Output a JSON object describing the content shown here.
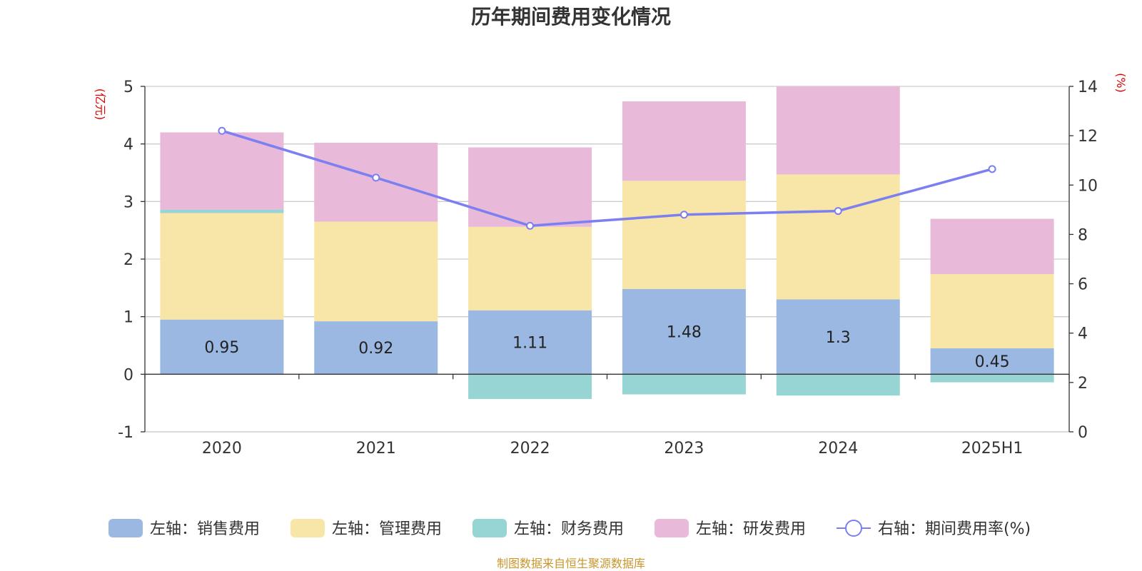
{
  "chart_data": {
    "type": "bar",
    "title": "历年期间费用变化情况",
    "categories": [
      "2020",
      "2021",
      "2022",
      "2023",
      "2024",
      "2025H1"
    ],
    "y_left": {
      "unit": "(亿元)",
      "ylim": [
        -1,
        5
      ],
      "ticks": [
        -1,
        0,
        1,
        2,
        3,
        4,
        5
      ]
    },
    "y_right": {
      "unit": "(%)",
      "ylim": [
        0,
        14
      ],
      "ticks": [
        0,
        2,
        4,
        6,
        8,
        10,
        12,
        14
      ]
    },
    "series": [
      {
        "name": "左轴：销售费用",
        "axis": "left",
        "stack": true,
        "color": "#9bb8e2",
        "values": [
          0.95,
          0.92,
          1.11,
          1.48,
          1.3,
          0.45
        ],
        "labels": [
          "0.95",
          "0.92",
          "1.11",
          "1.48",
          "1.3",
          "0.45"
        ]
      },
      {
        "name": "左轴：管理费用",
        "axis": "left",
        "stack": true,
        "color": "#f8e6a8",
        "values": [
          1.85,
          1.73,
          1.45,
          1.88,
          2.17,
          1.29
        ]
      },
      {
        "name": "左轴：财务费用",
        "axis": "left",
        "stack": true,
        "color": "#97d5d4",
        "values": [
          0.06,
          0.0,
          -0.43,
          -0.35,
          -0.37,
          -0.14
        ]
      },
      {
        "name": "左轴：研发费用",
        "axis": "left",
        "stack": true,
        "color": "#e8b9d9",
        "values": [
          1.34,
          1.37,
          1.38,
          1.38,
          1.53,
          0.96
        ]
      },
      {
        "name": "右轴：期间费用率(%)",
        "axis": "right",
        "type": "line",
        "color": "#7b7ff0",
        "values": [
          12.2,
          10.3,
          8.35,
          8.8,
          8.95,
          10.65
        ]
      }
    ],
    "grid": true,
    "legend_position": "bottom"
  },
  "source_note": "制图数据来自恒生聚源数据库"
}
